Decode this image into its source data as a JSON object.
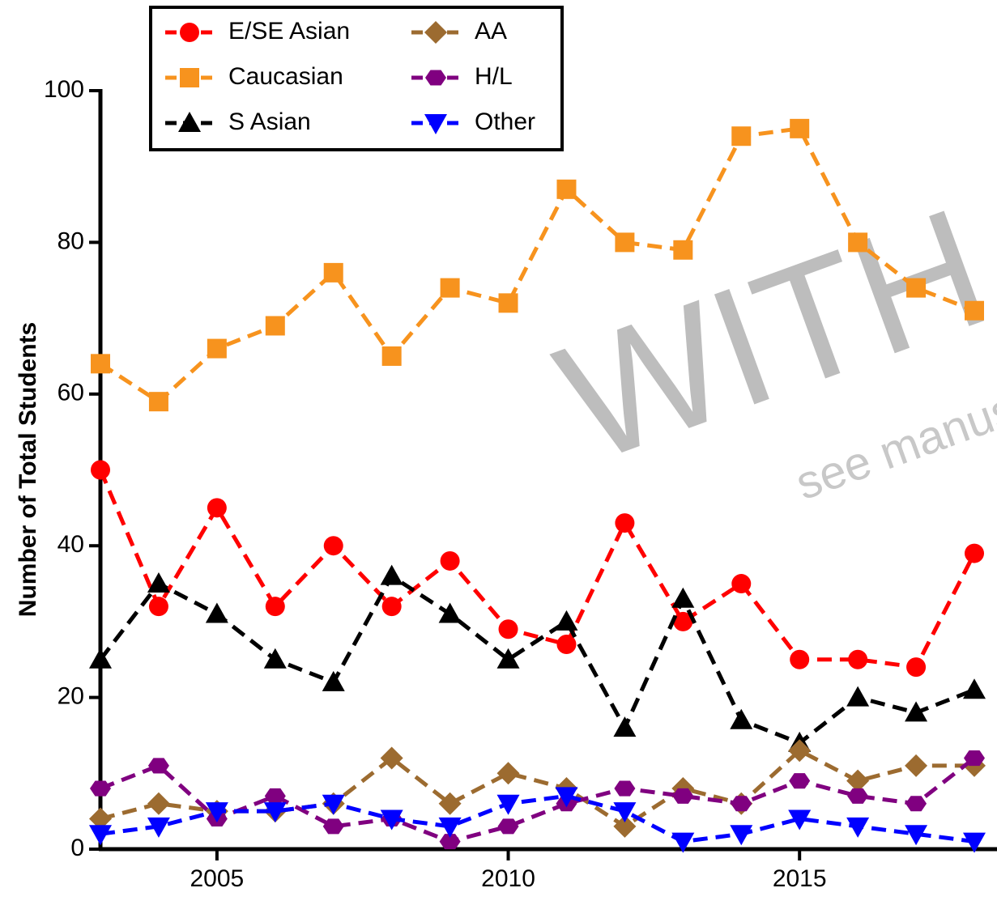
{
  "chart_data": {
    "type": "line",
    "y_label": "Number of Total Students",
    "x": [
      2003,
      2004,
      2005,
      2006,
      2007,
      2008,
      2009,
      2010,
      2011,
      2012,
      2013,
      2014,
      2015,
      2016,
      2017,
      2018
    ],
    "xlim": [
      2003,
      2018
    ],
    "xticks": [
      2005,
      2010,
      2015
    ],
    "ylim": [
      0,
      100
    ],
    "yticks": [
      0,
      20,
      40,
      60,
      80,
      100
    ],
    "grid": false,
    "legend": "top-left",
    "series": [
      {
        "name": "E/SE Asian",
        "color": "#ff0000",
        "marker": "circle",
        "values": [
          50,
          32,
          45,
          32,
          40,
          32,
          38,
          29,
          27,
          43,
          30,
          35,
          25,
          25,
          24,
          39
        ]
      },
      {
        "name": "Caucasian",
        "color": "#f7931e",
        "marker": "square",
        "values": [
          64,
          59,
          66,
          69,
          76,
          65,
          74,
          72,
          87,
          80,
          79,
          94,
          95,
          80,
          74,
          71
        ]
      },
      {
        "name": "S Asian",
        "color": "#000000",
        "marker": "triangle-up",
        "values": [
          25,
          35,
          31,
          25,
          22,
          36,
          31,
          25,
          30,
          16,
          33,
          17,
          14,
          20,
          18,
          21
        ]
      },
      {
        "name": "AA",
        "color": "#9c6b30",
        "marker": "diamond",
        "values": [
          4,
          6,
          5,
          5,
          6,
          12,
          6,
          10,
          8,
          3,
          8,
          6,
          13,
          9,
          11,
          11
        ]
      },
      {
        "name": "H/L",
        "color": "#800080",
        "marker": "hexagon",
        "values": [
          8,
          11,
          4,
          7,
          3,
          4,
          1,
          3,
          6,
          8,
          7,
          6,
          9,
          7,
          6,
          12
        ]
      },
      {
        "name": "Other",
        "color": "#0000ff",
        "marker": "triangle-down",
        "values": [
          2,
          3,
          5,
          5,
          6,
          4,
          3,
          6,
          7,
          5,
          1,
          2,
          4,
          3,
          2,
          1
        ]
      }
    ],
    "watermark": "WITH",
    "watermark_note": "see manus"
  }
}
